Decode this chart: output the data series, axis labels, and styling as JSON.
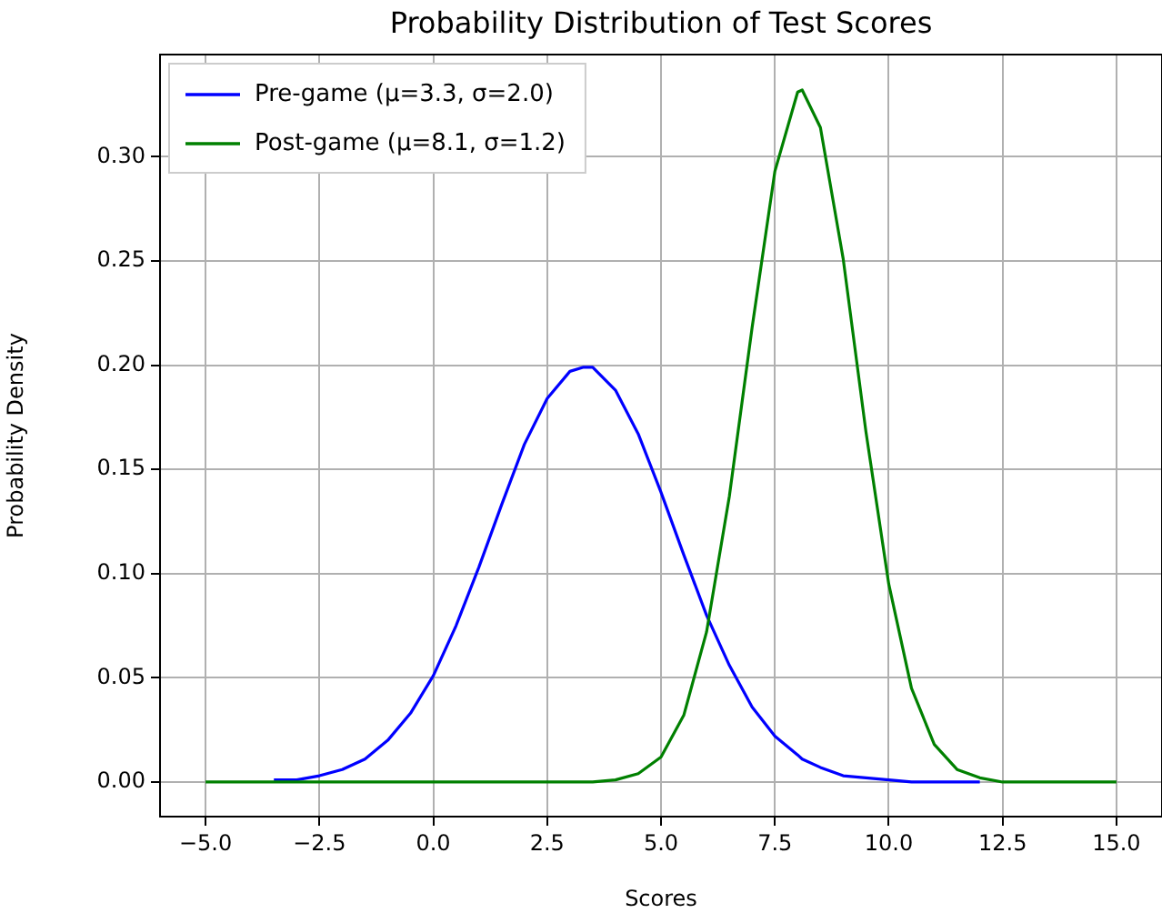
{
  "chart_data": {
    "type": "line",
    "title": "Probability Distribution of Test Scores",
    "xlabel": "Scores",
    "ylabel": "Probability Density",
    "x": [
      -5,
      -4.5,
      -4,
      -3.5,
      -3,
      -2.5,
      -2,
      -1.5,
      -1,
      -0.5,
      0,
      0.5,
      1,
      1.5,
      2,
      2.5,
      3,
      3.3,
      3.5,
      4,
      4.5,
      5,
      5.5,
      6,
      6.5,
      7,
      7.5,
      8,
      8.1,
      8.5,
      9,
      9.5,
      10,
      10.5,
      11,
      11.5,
      12,
      12.5,
      13,
      13.5,
      14,
      14.5,
      15
    ],
    "series": [
      {
        "name": "Pre-game (μ=3.3, σ=2.0)",
        "color": "#0000ff",
        "values": [
          null,
          null,
          null,
          0.001,
          0.001,
          0.003,
          0.006,
          0.011,
          0.02,
          0.033,
          0.051,
          0.075,
          0.103,
          0.133,
          0.162,
          0.184,
          0.197,
          0.199,
          0.199,
          0.188,
          0.167,
          0.139,
          0.109,
          0.08,
          0.056,
          0.036,
          0.022,
          0.013,
          0.011,
          0.007,
          0.003,
          0.002,
          0.001,
          0.0,
          0.0,
          0.0,
          0.0,
          null,
          null,
          null,
          null,
          null,
          null
        ]
      },
      {
        "name": "Post-game (μ=8.1, σ=1.2)",
        "color": "#008000",
        "values": [
          0.0,
          0.0,
          0.0,
          0.0,
          0.0,
          0.0,
          0.0,
          0.0,
          0.0,
          0.0,
          0.0,
          0.0,
          0.0,
          0.0,
          0.0,
          0.0,
          0.0,
          0.0,
          0.0,
          0.001,
          0.004,
          0.012,
          0.032,
          0.072,
          0.137,
          0.218,
          0.293,
          0.331,
          0.332,
          0.314,
          0.251,
          0.168,
          0.095,
          0.045,
          0.018,
          0.006,
          0.002,
          0.0,
          0.0,
          0.0,
          0.0,
          0.0,
          0.0
        ]
      }
    ],
    "xlim": [
      -6,
      16
    ],
    "xticks": [
      {
        "value": -5,
        "label": "−5.0"
      },
      {
        "value": -2.5,
        "label": "−2.5"
      },
      {
        "value": 0,
        "label": "0.0"
      },
      {
        "value": 2.5,
        "label": "2.5"
      },
      {
        "value": 5,
        "label": "5.0"
      },
      {
        "value": 7.5,
        "label": "7.5"
      },
      {
        "value": 10,
        "label": "10.0"
      },
      {
        "value": 12.5,
        "label": "12.5"
      },
      {
        "value": 15,
        "label": "15.0"
      }
    ],
    "ylim": [
      -0.0166,
      0.349
    ],
    "yticks": [
      {
        "value": 0,
        "label": "0.00"
      },
      {
        "value": 0.05,
        "label": "0.05"
      },
      {
        "value": 0.1,
        "label": "0.10"
      },
      {
        "value": 0.15,
        "label": "0.15"
      },
      {
        "value": 0.2,
        "label": "0.20"
      },
      {
        "value": 0.25,
        "label": "0.25"
      },
      {
        "value": 0.3,
        "label": "0.30"
      }
    ],
    "grid": true,
    "legend": "top left",
    "marker": "none",
    "line_style": "solid"
  }
}
